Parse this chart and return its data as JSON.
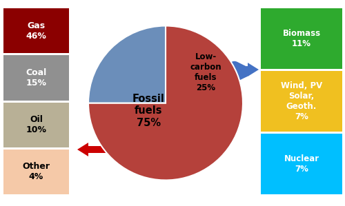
{
  "pie_values": [
    75,
    25
  ],
  "pie_colors": [
    "#b5413b",
    "#6b8eba"
  ],
  "pie_startangle": 90,
  "fossil_label": "Fossil\nfuels\n75%",
  "lowcarbon_label": "Low-\ncarbon\nfuels\n25%",
  "left_boxes": [
    {
      "label": "Gas\n46%",
      "color": "#8b0000",
      "text_color": "#ffffff"
    },
    {
      "label": "Coal\n15%",
      "color": "#909090",
      "text_color": "#ffffff"
    },
    {
      "label": "Oil\n10%",
      "color": "#b8b096",
      "text_color": "#000000"
    },
    {
      "label": "Other\n4%",
      "color": "#f5c9a8",
      "text_color": "#000000"
    }
  ],
  "right_boxes": [
    {
      "label": "Biomass\n11%",
      "color": "#2eaa2e",
      "text_color": "#ffffff"
    },
    {
      "label": "Wind, PV\nSolar,\nGeoth.\n7%",
      "color": "#f0c020",
      "text_color": "#ffffff"
    },
    {
      "label": "Nuclear\n7%",
      "color": "#00bfff",
      "text_color": "#ffffff"
    }
  ],
  "bg_color": "#ffffff",
  "arrow_right_color": "#4472c4",
  "arrow_left_color": "#cc0000"
}
